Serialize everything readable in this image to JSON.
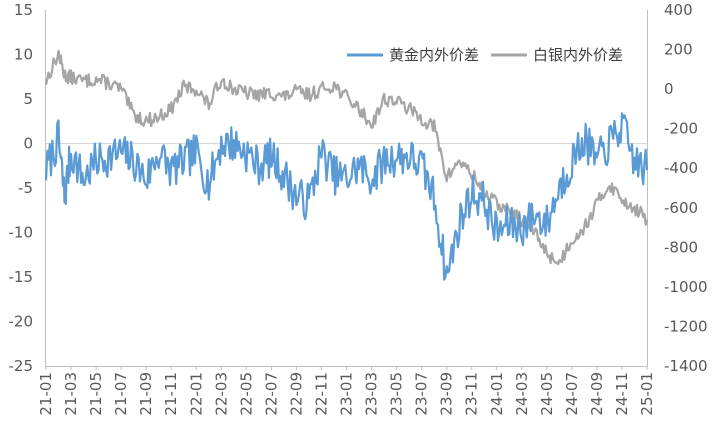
{
  "chart_data": {
    "type": "line",
    "title": "",
    "xlabel": "",
    "ylabel_left": "",
    "ylabel_right": "",
    "x_tick_labels": [
      "21-01",
      "21-03",
      "21-05",
      "21-07",
      "21-09",
      "21-11",
      "22-01",
      "22-03",
      "22-05",
      "22-07",
      "22-09",
      "22-11",
      "23-01",
      "23-03",
      "23-05",
      "23-07",
      "23-09",
      "23-11",
      "24-01",
      "24-03",
      "24-05",
      "24-07",
      "24-09",
      "24-11",
      "25-01"
    ],
    "y_left": {
      "min": -25,
      "max": 15,
      "step": 5,
      "tick_labels": [
        "15",
        "10",
        "5",
        "0",
        "-5",
        "-10",
        "-15",
        "-20",
        "-25"
      ]
    },
    "y_right": {
      "min": -1400,
      "max": 400,
      "step": 200,
      "tick_labels": [
        "400",
        "200",
        "0",
        "-200",
        "-400",
        "-600",
        "-800",
        "-1000",
        "-1200",
        "-1400"
      ]
    },
    "legend_position": "top-right",
    "grid": false,
    "reference_line": {
      "axis": "left",
      "value": 0
    },
    "series": [
      {
        "name": "黄金内外价差",
        "axis": "left",
        "color": "#5B9BD5",
        "points": [
          [
            "21-01",
            -3.0
          ],
          [
            "21-02",
            0.5
          ],
          [
            "21-02",
            -6.0
          ],
          [
            "21-03",
            -1.0
          ],
          [
            "21-04",
            -4.0
          ],
          [
            "21-05",
            -2.0
          ],
          [
            "21-06",
            -1.5
          ],
          [
            "21-07",
            -1.0
          ],
          [
            "21-08",
            -2.0
          ],
          [
            "21-09",
            -4.0
          ],
          [
            "21-10",
            -1.0
          ],
          [
            "21-11",
            -3.0
          ],
          [
            "21-12",
            -2.0
          ],
          [
            "22-01",
            -1.0
          ],
          [
            "22-02",
            -4.5
          ],
          [
            "22-03",
            0.0
          ],
          [
            "22-04",
            0.0
          ],
          [
            "22-05",
            -1.0
          ],
          [
            "22-06",
            -2.5
          ],
          [
            "22-07",
            -1.5
          ],
          [
            "22-08",
            -3.5
          ],
          [
            "22-09",
            -6.0
          ],
          [
            "22-10",
            -6.5
          ],
          [
            "22-11",
            -1.0
          ],
          [
            "22-12",
            -3.5
          ],
          [
            "23-01",
            -4.0
          ],
          [
            "23-02",
            -2.5
          ],
          [
            "23-03",
            -4.0
          ],
          [
            "23-04",
            -2.0
          ],
          [
            "23-05",
            -1.5
          ],
          [
            "23-06",
            -1.5
          ],
          [
            "23-07",
            -2.5
          ],
          [
            "23-08",
            -6.0
          ],
          [
            "23-09",
            -15.0
          ],
          [
            "23-10",
            -9.0
          ],
          [
            "23-11",
            -5.5
          ],
          [
            "23-12",
            -6.5
          ],
          [
            "24-01",
            -10.0
          ],
          [
            "24-02",
            -9.0
          ],
          [
            "24-03",
            -9.5
          ],
          [
            "24-04",
            -8.0
          ],
          [
            "24-05",
            -9.0
          ],
          [
            "24-06",
            -5.0
          ],
          [
            "24-07",
            -2.0
          ],
          [
            "24-08",
            0.5
          ],
          [
            "24-09",
            -2.0
          ],
          [
            "24-10",
            0.0
          ],
          [
            "24-11",
            2.0
          ],
          [
            "24-12",
            -2.0
          ],
          [
            "25-01",
            -3.0
          ]
        ]
      },
      {
        "name": "白银内外价差",
        "axis": "right",
        "color": "#A5A5A5",
        "points": [
          [
            "21-01",
            40
          ],
          [
            "21-02",
            180
          ],
          [
            "21-02",
            70
          ],
          [
            "21-03",
            60
          ],
          [
            "21-04",
            40
          ],
          [
            "21-05",
            50
          ],
          [
            "21-06",
            30
          ],
          [
            "21-07",
            0
          ],
          [
            "21-08",
            -130
          ],
          [
            "21-09",
            -160
          ],
          [
            "21-10",
            -140
          ],
          [
            "21-11",
            -100
          ],
          [
            "21-12",
            10
          ],
          [
            "22-01",
            0
          ],
          [
            "22-02",
            -80
          ],
          [
            "22-03",
            50
          ],
          [
            "22-04",
            0
          ],
          [
            "22-05",
            -20
          ],
          [
            "22-06",
            -30
          ],
          [
            "22-07",
            -20
          ],
          [
            "22-08",
            -40
          ],
          [
            "22-09",
            -10
          ],
          [
            "22-10",
            -30
          ],
          [
            "22-11",
            0
          ],
          [
            "22-12",
            20
          ],
          [
            "23-01",
            -40
          ],
          [
            "23-02",
            -100
          ],
          [
            "23-03",
            -180
          ],
          [
            "23-04",
            -50
          ],
          [
            "23-05",
            -60
          ],
          [
            "23-06",
            -100
          ],
          [
            "23-07",
            -150
          ],
          [
            "23-08",
            -190
          ],
          [
            "23-09",
            -450
          ],
          [
            "23-10",
            -360
          ],
          [
            "23-11",
            -430
          ],
          [
            "23-12",
            -520
          ],
          [
            "24-01",
            -580
          ],
          [
            "24-02",
            -620
          ],
          [
            "24-03",
            -660
          ],
          [
            "24-04",
            -720
          ],
          [
            "24-05",
            -830
          ],
          [
            "24-06",
            -880
          ],
          [
            "24-07",
            -760
          ],
          [
            "24-08",
            -700
          ],
          [
            "24-09",
            -580
          ],
          [
            "24-10",
            -480
          ],
          [
            "24-11",
            -560
          ],
          [
            "24-12",
            -600
          ],
          [
            "25-01",
            -660
          ]
        ]
      }
    ]
  }
}
